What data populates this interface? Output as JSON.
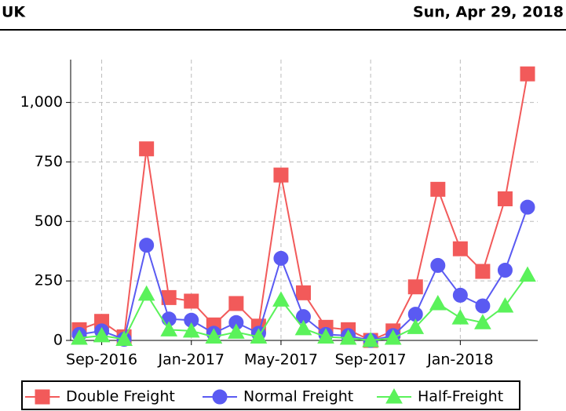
{
  "header": {
    "left": "UK",
    "right": "Sun, Apr 29, 2018"
  },
  "chart_data": {
    "type": "line",
    "categories": [
      null,
      "Sep-2016",
      null,
      null,
      null,
      "Jan-2017",
      null,
      null,
      null,
      "May-2017",
      null,
      null,
      null,
      "Sep-2017",
      null,
      null,
      null,
      "Jan-2018",
      null,
      null,
      null
    ],
    "series": [
      {
        "name": "Double Freight",
        "color": "#f25a5a",
        "marker": "square",
        "values": [
          45,
          80,
          15,
          805,
          180,
          165,
          65,
          155,
          60,
          695,
          200,
          55,
          45,
          0,
          40,
          225,
          635,
          385,
          290,
          595,
          1120
        ]
      },
      {
        "name": "Normal Freight",
        "color": "#5a5af2",
        "marker": "circle",
        "values": [
          25,
          40,
          5,
          400,
          90,
          85,
          30,
          75,
          30,
          345,
          100,
          25,
          20,
          0,
          20,
          110,
          315,
          190,
          145,
          295,
          560
        ]
      },
      {
        "name": "Half-Freight",
        "color": "#5af25a",
        "marker": "triangle",
        "values": [
          10,
          20,
          5,
          195,
          45,
          40,
          15,
          35,
          15,
          170,
          50,
          15,
          10,
          0,
          10,
          55,
          155,
          95,
          75,
          145,
          275
        ]
      }
    ],
    "ylim": [
      0,
      1180
    ],
    "yticks": [
      0,
      250,
      500,
      750,
      {
        "value": 1000,
        "label": "1,000"
      }
    ],
    "grid": true,
    "legend": "bottom"
  }
}
